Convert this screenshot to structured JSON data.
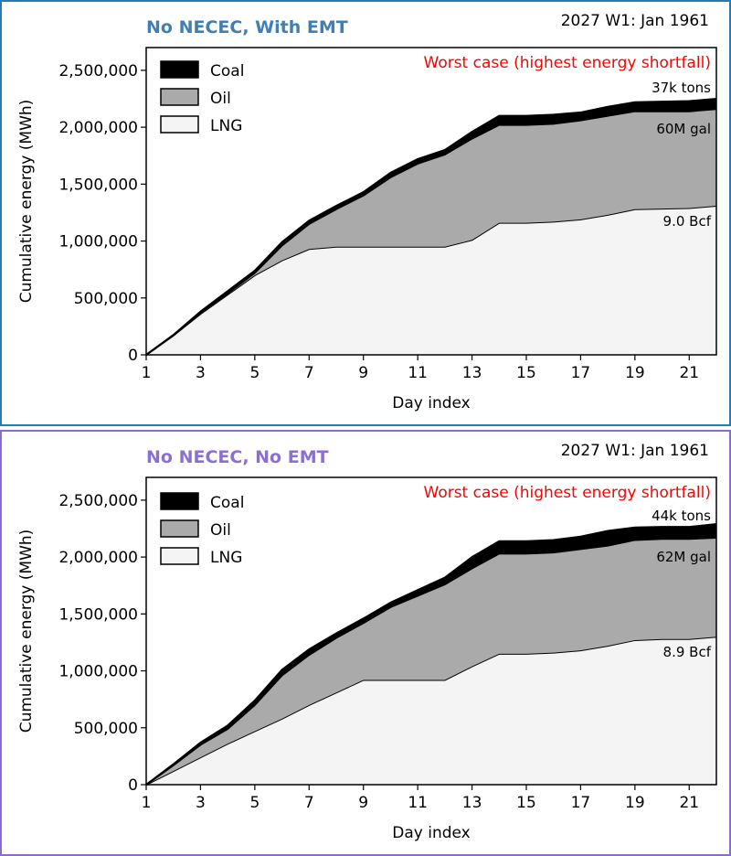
{
  "chart_data": [
    {
      "type": "area",
      "stacked": true,
      "title": "No NECEC, With EMT",
      "title_color": "#3f7fb5",
      "subtitle": "2027 W1: Jan 1961",
      "annotation": "Worst case (highest energy shortfall)",
      "annotation_color": "#ff0000",
      "xlabel": "Day index",
      "ylabel": "Cumulative energy (MWh)",
      "xlim": [
        1,
        22
      ],
      "ylim": [
        0,
        2700000
      ],
      "xticks": [
        "1",
        "3",
        "5",
        "7",
        "9",
        "11",
        "13",
        "15",
        "17",
        "19",
        "21"
      ],
      "yticks": [
        "0",
        "500,000",
        "1,000,000",
        "1,500,000",
        "2,000,000",
        "2,500,000"
      ],
      "grid": false,
      "legend_position": "top-left",
      "x": [
        1,
        2,
        3,
        4,
        5,
        6,
        7,
        8,
        9,
        10,
        11,
        12,
        13,
        14,
        15,
        16,
        17,
        18,
        19,
        20,
        21,
        22
      ],
      "series": [
        {
          "name": "LNG",
          "color": "#f4f4f4",
          "end_label": "9.0 Bcf",
          "values": [
            0,
            170000,
            360000,
            530000,
            700000,
            830000,
            930000,
            950000,
            950000,
            950000,
            950000,
            950000,
            1010000,
            1160000,
            1160000,
            1170000,
            1190000,
            1230000,
            1280000,
            1285000,
            1290000,
            1310000
          ]
        },
        {
          "name": "Oil",
          "color": "#aaaaaa",
          "end_label": "60M gal",
          "values": [
            0,
            0,
            10000,
            10000,
            20000,
            130000,
            220000,
            330000,
            450000,
            610000,
            730000,
            810000,
            890000,
            860000,
            860000,
            860000,
            870000,
            870000,
            860000,
            855000,
            850000,
            850000
          ]
        },
        {
          "name": "Coal",
          "color": "#000000",
          "end_label": "37k tons",
          "values": [
            0,
            5000,
            10000,
            20000,
            20000,
            30000,
            30000,
            30000,
            30000,
            40000,
            40000,
            40000,
            60000,
            80000,
            80000,
            80000,
            70000,
            80000,
            80000,
            85000,
            90000,
            90000
          ]
        }
      ]
    },
    {
      "type": "area",
      "stacked": true,
      "title": "No NECEC, No EMT",
      "title_color": "#8b6fd6",
      "subtitle": "2027 W1: Jan 1961",
      "annotation": "Worst case (highest energy shortfall)",
      "annotation_color": "#ff0000",
      "xlabel": "Day index",
      "ylabel": "Cumulative energy (MWh)",
      "xlim": [
        1,
        22
      ],
      "ylim": [
        0,
        2700000
      ],
      "xticks": [
        "1",
        "3",
        "5",
        "7",
        "9",
        "11",
        "13",
        "15",
        "17",
        "19",
        "21"
      ],
      "yticks": [
        "0",
        "500,000",
        "1,000,000",
        "1,500,000",
        "2,000,000",
        "2,500,000"
      ],
      "grid": false,
      "legend_position": "top-left",
      "x": [
        1,
        2,
        3,
        4,
        5,
        6,
        7,
        8,
        9,
        10,
        11,
        12,
        13,
        14,
        15,
        16,
        17,
        18,
        19,
        20,
        21,
        22
      ],
      "series": [
        {
          "name": "LNG",
          "color": "#f4f4f4",
          "end_label": "8.9 Bcf",
          "values": [
            0,
            120000,
            240000,
            360000,
            470000,
            580000,
            700000,
            810000,
            920000,
            920000,
            920000,
            920000,
            1040000,
            1150000,
            1150000,
            1160000,
            1180000,
            1220000,
            1270000,
            1280000,
            1280000,
            1300000
          ]
        },
        {
          "name": "Oil",
          "color": "#aaaaaa",
          "end_label": "62M gal",
          "values": [
            0,
            50000,
            110000,
            130000,
            230000,
            380000,
            440000,
            480000,
            500000,
            640000,
            740000,
            840000,
            860000,
            880000,
            880000,
            880000,
            890000,
            880000,
            880000,
            880000,
            880000,
            870000
          ]
        },
        {
          "name": "Coal",
          "color": "#000000",
          "end_label": "44k tons",
          "values": [
            0,
            10000,
            20000,
            30000,
            40000,
            50000,
            50000,
            40000,
            40000,
            40000,
            50000,
            60000,
            100000,
            110000,
            110000,
            110000,
            110000,
            130000,
            110000,
            105000,
            105000,
            120000
          ]
        }
      ]
    }
  ]
}
